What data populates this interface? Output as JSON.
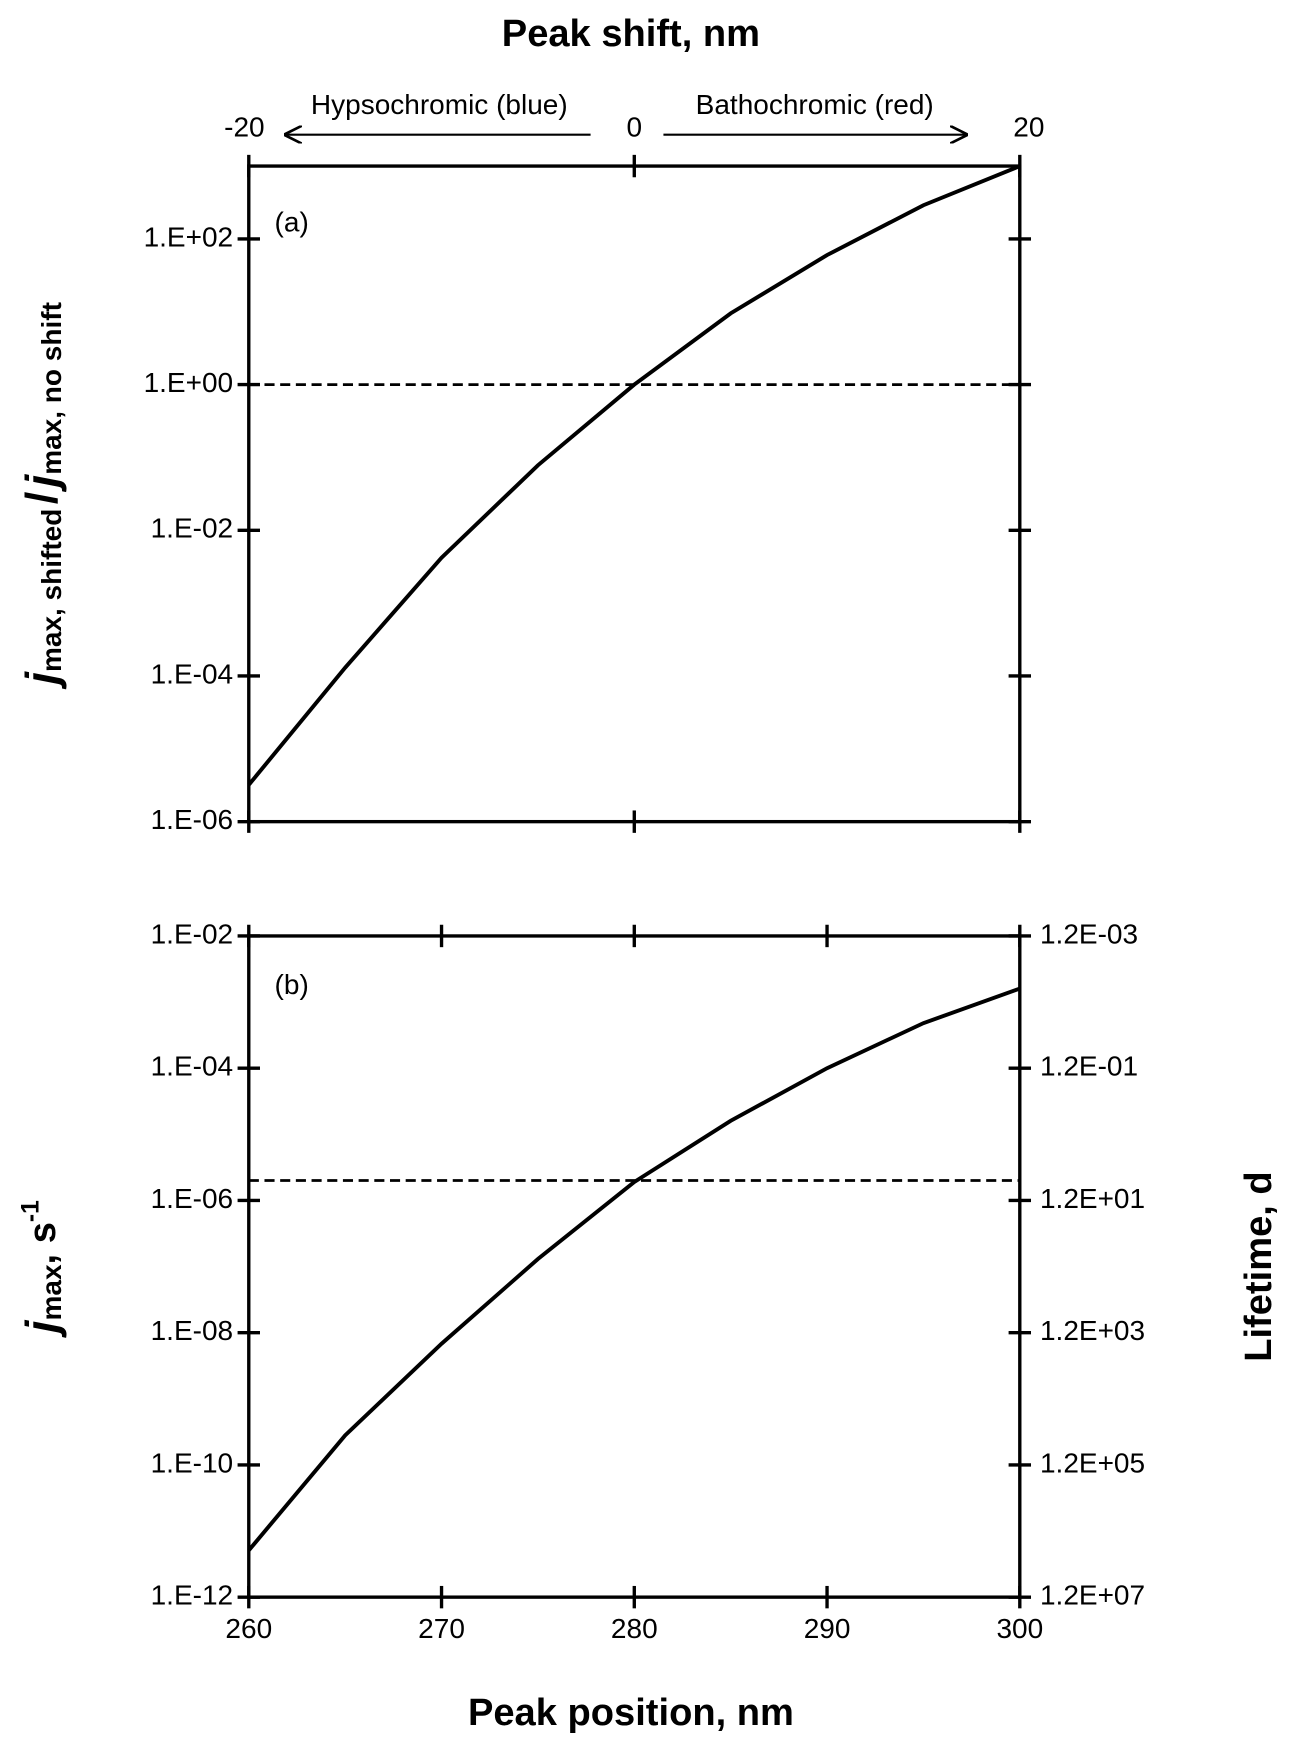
{
  "chart_data": [
    {
      "type": "line",
      "annotation": "(a)",
      "title": "Peak shift, nm",
      "x2lim": [
        -20,
        20
      ],
      "x2ticks": [
        -20,
        0,
        20
      ],
      "shift_left": "Hypsochromic (blue)",
      "shift_right": "Bathochromic (red)",
      "ylabel": [
        "j",
        "max, shifted",
        "/",
        "j",
        "max, no shift"
      ],
      "log_y": true,
      "x": [
        260,
        265,
        270,
        275,
        280,
        285,
        290,
        295,
        300
      ],
      "xlim": [
        260,
        300
      ],
      "ylim": [
        1e-06,
        1000
      ],
      "yticks": [
        {
          "value": 1e-06,
          "label": "1.E-06"
        },
        {
          "value": 0.0001,
          "label": "1.E-04"
        },
        {
          "value": 0.01,
          "label": "1.E-02"
        },
        {
          "value": 1,
          "label": "1.E+00"
        },
        {
          "value": 100,
          "label": "1.E+02"
        }
      ],
      "series": [
        {
          "color": "#000000",
          "values": [
            3.2e-06,
            0.00013,
            0.0042,
            0.078,
            1,
            9.5,
            60,
            290,
            1000
          ]
        }
      ],
      "reference_line": 1
    },
    {
      "type": "line",
      "annotation": "(b)",
      "xlabel": "Peak position, nm",
      "ylabel": [
        "j",
        "max",
        ", s",
        "-1"
      ],
      "y2label": "Lifetime, d",
      "log_y": true,
      "x": [
        260,
        265,
        270,
        275,
        280,
        285,
        290,
        295,
        300
      ],
      "xlim": [
        260,
        300
      ],
      "xticks": [
        260,
        270,
        280,
        290,
        300
      ],
      "ylim": [
        1e-12,
        0.01
      ],
      "yticks": [
        {
          "value": 1e-12,
          "label": "1.E-12"
        },
        {
          "value": 1e-10,
          "label": "1.E-10"
        },
        {
          "value": 1e-08,
          "label": "1.E-08"
        },
        {
          "value": 1e-06,
          "label": "1.E-06"
        },
        {
          "value": 0.0001,
          "label": "1.E-04"
        },
        {
          "value": 0.01,
          "label": "1.E-02"
        }
      ],
      "y2lim": [
        12000000,
        0.0012
      ],
      "y2ticks": [
        {
          "value": 12000000,
          "label": "1.2E+07"
        },
        {
          "value": 120000,
          "label": "1.2E+05"
        },
        {
          "value": 1200,
          "label": "1.2E+03"
        },
        {
          "value": 12,
          "label": "1.2E+01"
        },
        {
          "value": 0.12,
          "label": "1.2E-01"
        },
        {
          "value": 0.0012,
          "label": "1.2E-03"
        }
      ],
      "series": [
        {
          "color": "#000000",
          "values": [
            5.1e-12,
            2.8e-10,
            6.8e-09,
            1.3e-07,
            1.9e-06,
            1.6e-05,
            0.0001,
            0.00048,
            0.0016
          ]
        }
      ],
      "reference_line": 2e-06
    }
  ]
}
